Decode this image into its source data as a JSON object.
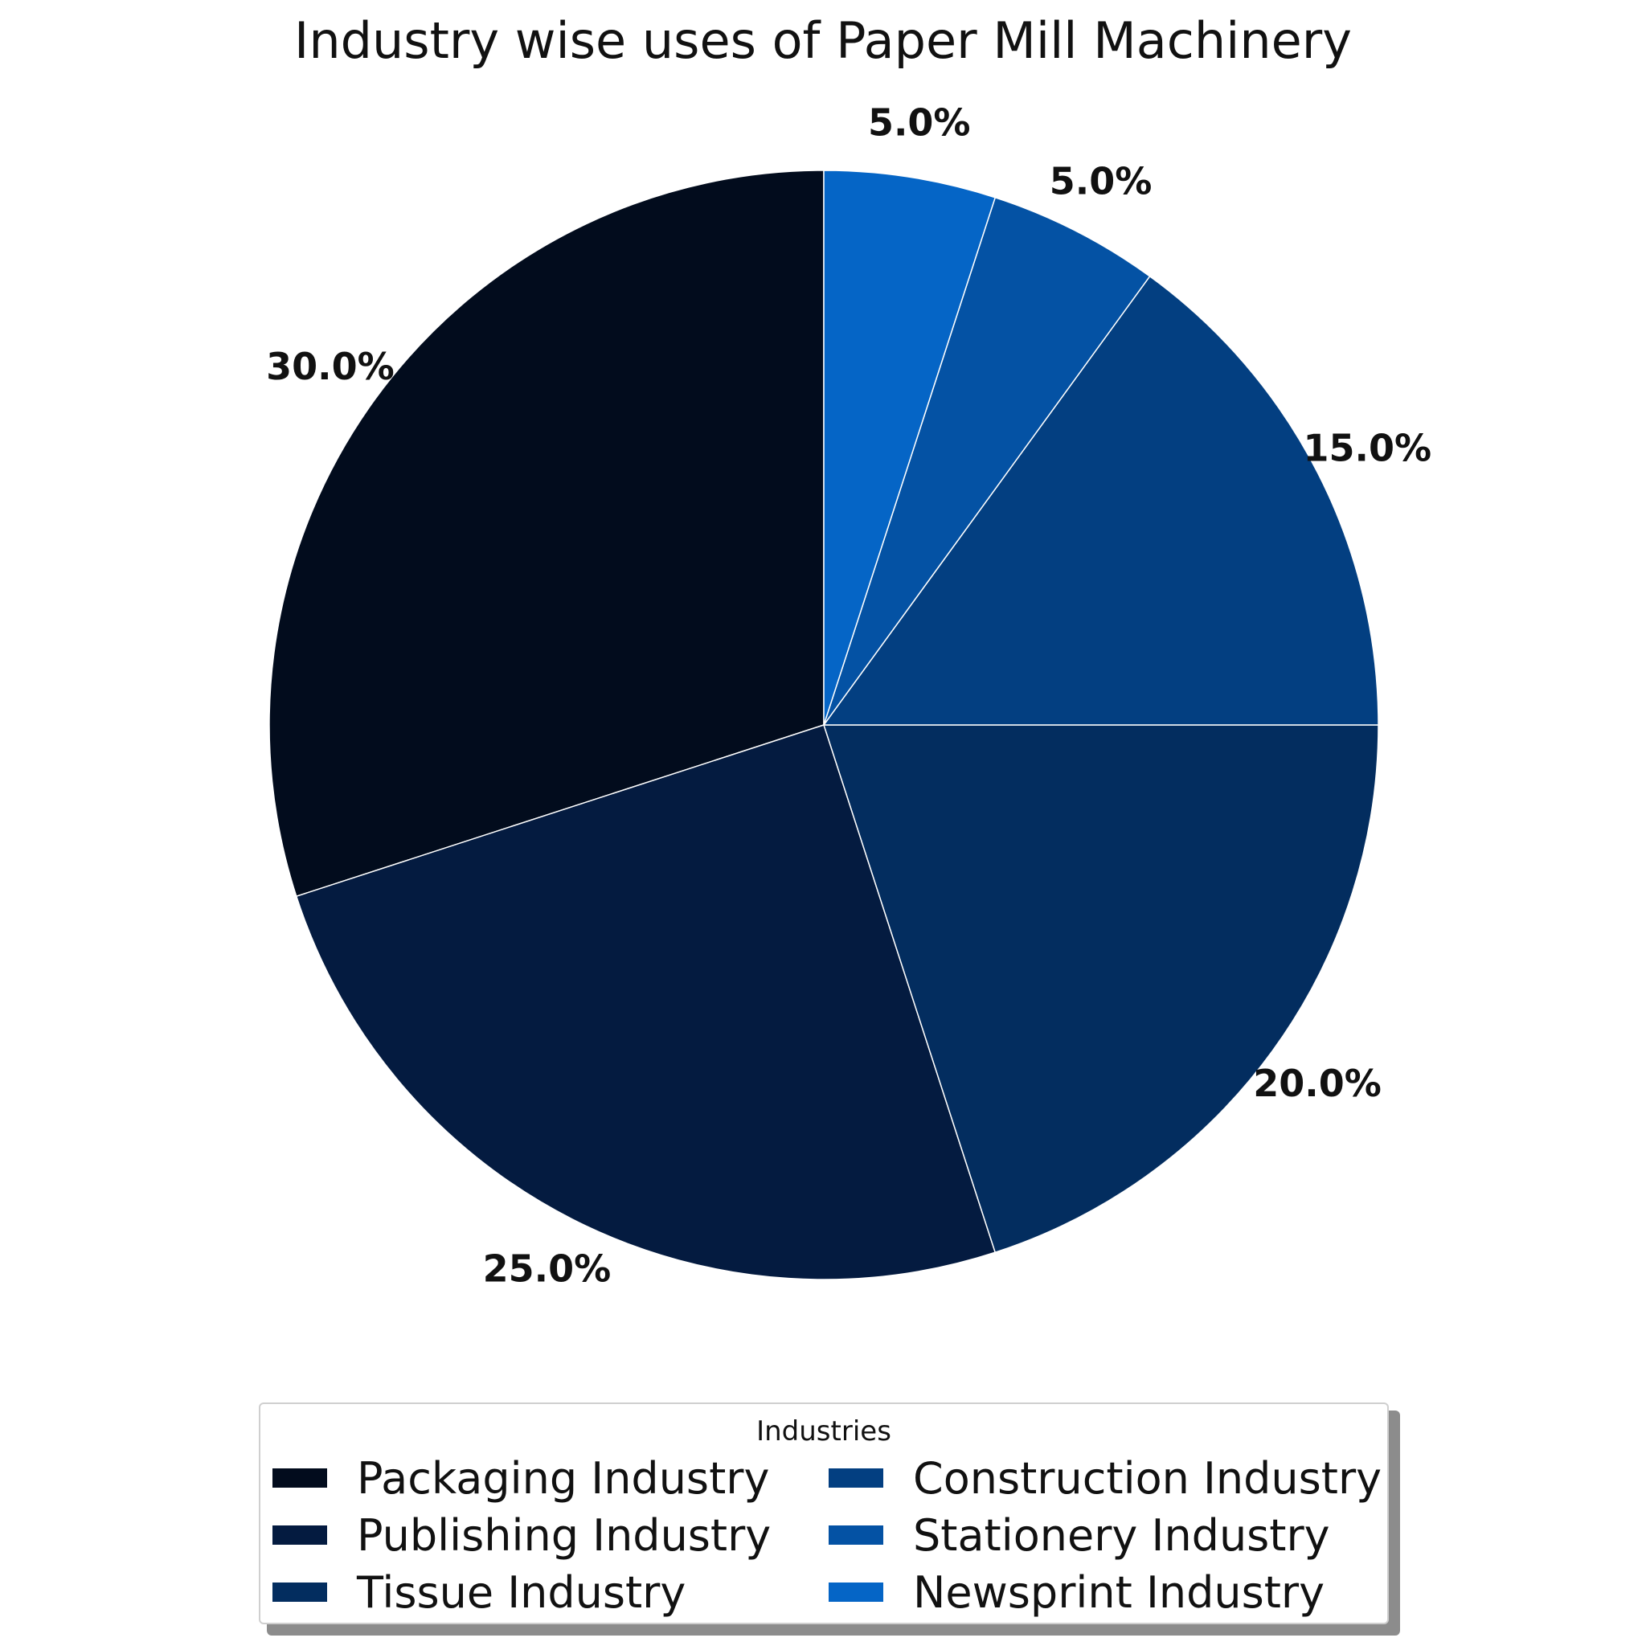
{
  "chart_data": {
    "type": "pie",
    "title": "Industry wise uses of Paper Mill Machinery",
    "legend_title": "Industries",
    "legend_position": "bottom",
    "categories": [
      "Packaging Industry",
      "Publishing Industry",
      "Tissue Industry",
      "Construction Industry",
      "Stationery Industry",
      "Newsprint Industry"
    ],
    "values": [
      30,
      25,
      20,
      15,
      5,
      5
    ],
    "labels": [
      "30.0%",
      "25.0%",
      "20.0%",
      "15.0%",
      "5.0%",
      "5.0%"
    ],
    "colors": [
      "#020c1d",
      "#041b40",
      "#032d5f",
      "#033f81",
      "#0452a4",
      "#0565c6"
    ]
  }
}
